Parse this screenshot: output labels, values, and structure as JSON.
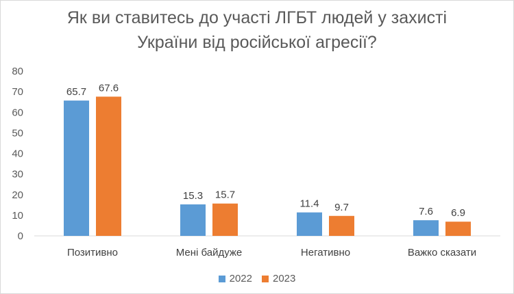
{
  "chart_data": {
    "type": "bar",
    "title_lines": [
      "Як ви ставитесь до участі ЛГБТ людей у захисті",
      "України від російської агресії?"
    ],
    "categories": [
      "Позитивно",
      "Мені байдуже",
      "Негативно",
      "Важко сказати"
    ],
    "series": [
      {
        "name": "2022",
        "values": [
          65.7,
          15.3,
          11.4,
          7.6
        ],
        "color": "#5b9bd5"
      },
      {
        "name": "2023",
        "values": [
          67.6,
          15.7,
          9.7,
          6.9
        ],
        "color": "#ed7d31"
      }
    ],
    "ylim": [
      0,
      80
    ],
    "yticks": [
      0,
      10,
      20,
      30,
      40,
      50,
      60,
      70,
      80
    ],
    "data_labels": true,
    "grid": false,
    "legend": "bottom"
  }
}
